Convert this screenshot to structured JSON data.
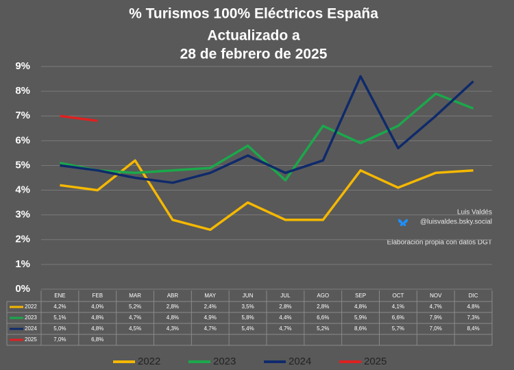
{
  "chart_data": {
    "type": "line",
    "title": "% Turismos 100% Eléctricos España",
    "subtitle": [
      "Actualizado a",
      "28 de febrero de 2025"
    ],
    "categories": [
      "ENE",
      "FEB",
      "MAR",
      "ABR",
      "MAY",
      "JUN",
      "JUL",
      "AGO",
      "SEP",
      "OCT",
      "NOV",
      "DIC"
    ],
    "series": [
      {
        "name": "2022",
        "color": "#f5b800",
        "values": [
          4.2,
          4.0,
          5.2,
          2.8,
          2.4,
          3.5,
          2.8,
          2.8,
          4.8,
          4.1,
          4.7,
          4.8
        ],
        "value_labels": [
          "4,2%",
          "4,0%",
          "5,2%",
          "2,8%",
          "2,4%",
          "3,5%",
          "2,8%",
          "2,8%",
          "4,8%",
          "4,1%",
          "4,7%",
          "4,8%"
        ]
      },
      {
        "name": "2023",
        "color": "#1ba84b",
        "values": [
          5.1,
          4.8,
          4.7,
          4.8,
          4.9,
          5.8,
          4.4,
          6.6,
          5.9,
          6.6,
          7.9,
          7.3
        ],
        "value_labels": [
          "5,1%",
          "4,8%",
          "4,7%",
          "4,8%",
          "4,9%",
          "5,8%",
          "4,4%",
          "6,6%",
          "5,9%",
          "6,6%",
          "7,9%",
          "7,3%"
        ]
      },
      {
        "name": "2024",
        "color": "#0f2a6b",
        "values": [
          5.0,
          4.8,
          4.5,
          4.3,
          4.7,
          5.4,
          4.7,
          5.2,
          8.6,
          5.7,
          7.0,
          8.4
        ],
        "value_labels": [
          "5,0%",
          "4,8%",
          "4,5%",
          "4,3%",
          "4,7%",
          "5,4%",
          "4,7%",
          "5,2%",
          "8,6%",
          "5,7%",
          "7,0%",
          "8,4%"
        ]
      },
      {
        "name": "2025",
        "color": "#e02020",
        "values": [
          7.0,
          6.8,
          null,
          null,
          null,
          null,
          null,
          null,
          null,
          null,
          null,
          null
        ],
        "value_labels": [
          "7,0%",
          "6,8%",
          null,
          null,
          null,
          null,
          null,
          null,
          null,
          null,
          null,
          null
        ]
      }
    ],
    "ylim": [
      0,
      9
    ],
    "yticks": [
      {
        "value": 0,
        "label": "0%"
      },
      {
        "value": 1,
        "label": "1%"
      },
      {
        "value": 2,
        "label": "2%"
      },
      {
        "value": 3,
        "label": "3%"
      },
      {
        "value": 4,
        "label": "4%"
      },
      {
        "value": 5,
        "label": "5%"
      },
      {
        "value": 6,
        "label": "6%"
      },
      {
        "value": 7,
        "label": "7%"
      },
      {
        "value": 8,
        "label": "8%"
      },
      {
        "value": 9,
        "label": "9%"
      }
    ],
    "grid": true,
    "legend": "bottom",
    "annotations": [
      "Luis Valdés",
      "@luisvaldes.bsky.social",
      "Elaboración propia con datos DGT"
    ]
  }
}
